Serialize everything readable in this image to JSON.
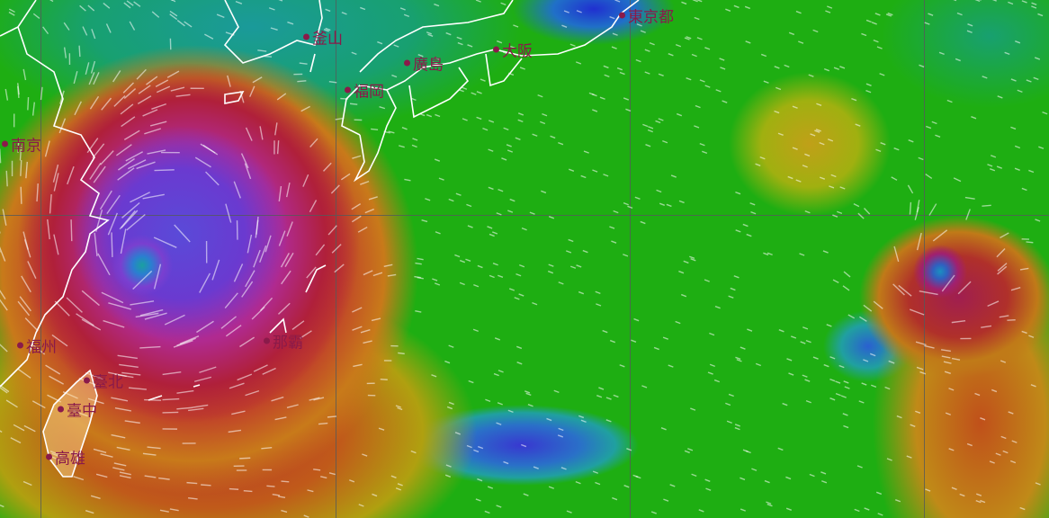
{
  "map": {
    "cities": [
      {
        "name": "東京都"
      },
      {
        "name": "釜山"
      },
      {
        "name": "廣島"
      },
      {
        "name": "大阪"
      },
      {
        "name": "福岡"
      },
      {
        "name": "南京"
      },
      {
        "name": "福州"
      },
      {
        "name": "臺北"
      },
      {
        "name": "臺中"
      },
      {
        "name": "高雄"
      },
      {
        "name": "那霸"
      }
    ],
    "colors": {
      "calm": "#1eae12",
      "moderate": "#c08a18",
      "strong": "#b0203a",
      "extreme": "#6a3ad0",
      "label": "#8a1a4a"
    },
    "layers": [
      "wind-speed-heatmap",
      "wind-particles",
      "coastlines",
      "graticule"
    ]
  }
}
